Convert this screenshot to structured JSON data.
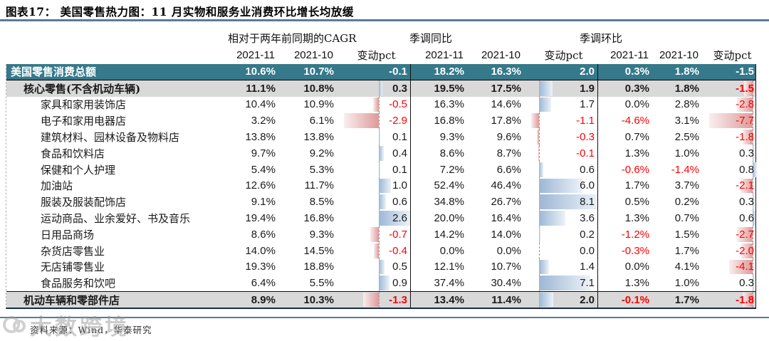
{
  "chart_data": {
    "type": "table",
    "title": "图表17：  美国零售热力图：11 月实物和服务业消费环比增长均放缓",
    "column_groups": [
      {
        "label": "相对于两年前同期的CAGR",
        "columns": [
          "2021-11",
          "2021-10",
          "变动pct"
        ]
      },
      {
        "label": "季调同比",
        "columns": [
          "2021-11",
          "2021-10",
          "变动pct"
        ]
      },
      {
        "label": "季调环比",
        "columns": [
          "2021-11",
          "2021-10",
          "变动pct"
        ]
      }
    ],
    "bar_ranges": [
      [
        -2.9,
        2.6
      ],
      [
        -1.1,
        8.1
      ],
      [
        -7.7,
        0.8
      ]
    ],
    "rows": [
      {
        "label": "美国零售消费总额",
        "level": 0,
        "style": "total",
        "values": [
          "10.6%",
          "10.7%",
          -0.1,
          "18.2%",
          "16.3%",
          2.0,
          "0.3%",
          "1.8%",
          -1.5
        ]
      },
      {
        "label": "核心零售(不含机动车辆)",
        "level": 1,
        "style": "subtotal",
        "values": [
          "11.1%",
          "10.8%",
          0.3,
          "19.5%",
          "17.5%",
          1.9,
          "0.3%",
          "1.8%",
          -1.5
        ]
      },
      {
        "label": "家具和家用装饰店",
        "level": 2,
        "style": "normal",
        "values": [
          "10.4%",
          "10.9%",
          -0.5,
          "16.3%",
          "14.6%",
          1.7,
          "0.0%",
          "2.8%",
          -2.8
        ]
      },
      {
        "label": "电子和家用电器店",
        "level": 2,
        "style": "normal",
        "values": [
          "3.2%",
          "6.1%",
          -2.9,
          "16.8%",
          "17.8%",
          -1.1,
          "-4.6%",
          "3.1%",
          -7.7
        ]
      },
      {
        "label": "建筑材料、园林设备及物料店",
        "level": 2,
        "style": "normal",
        "values": [
          "13.8%",
          "13.8%",
          0.1,
          "9.3%",
          "9.6%",
          -0.3,
          "0.7%",
          "2.5%",
          -1.8
        ]
      },
      {
        "label": "食品和饮料店",
        "level": 2,
        "style": "normal",
        "values": [
          "9.7%",
          "9.2%",
          0.4,
          "8.6%",
          "8.7%",
          -0.1,
          "1.3%",
          "1.0%",
          0.3
        ]
      },
      {
        "label": "保健和个人护理",
        "level": 2,
        "style": "normal",
        "values": [
          "5.4%",
          "5.3%",
          0.1,
          "7.2%",
          "6.6%",
          0.6,
          "-0.6%",
          "-1.4%",
          0.8
        ]
      },
      {
        "label": "加油站",
        "level": 2,
        "style": "normal",
        "values": [
          "12.6%",
          "11.7%",
          1.0,
          "52.4%",
          "46.4%",
          6.0,
          "1.7%",
          "3.7%",
          -2.1
        ]
      },
      {
        "label": "服装及服装配饰店",
        "level": 2,
        "style": "normal",
        "values": [
          "9.1%",
          "8.5%",
          0.6,
          "34.8%",
          "26.7%",
          8.1,
          "0.5%",
          "0.2%",
          0.3
        ]
      },
      {
        "label": "运动商品、业余爱好、书及音乐",
        "level": 2,
        "style": "normal",
        "values": [
          "19.4%",
          "16.8%",
          2.6,
          "20.0%",
          "16.4%",
          3.6,
          "1.3%",
          "0.7%",
          0.6
        ]
      },
      {
        "label": "日用品商场",
        "level": 2,
        "style": "normal",
        "values": [
          "8.6%",
          "9.3%",
          -0.7,
          "14.2%",
          "14.0%",
          0.2,
          "-1.2%",
          "1.5%",
          -2.7
        ]
      },
      {
        "label": "杂货店零售业",
        "level": 2,
        "style": "normal",
        "values": [
          "14.0%",
          "14.5%",
          -0.4,
          "0.0%",
          "0.0%",
          0.0,
          "-0.3%",
          "1.7%",
          -2.0
        ]
      },
      {
        "label": "无店铺零售业",
        "level": 2,
        "style": "normal",
        "values": [
          "19.3%",
          "18.8%",
          0.5,
          "12.1%",
          "10.7%",
          1.4,
          "0.0%",
          "4.1%",
          -4.1
        ]
      },
      {
        "label": "食品服务和饮吧",
        "level": 2,
        "style": "normal",
        "values": [
          "6.4%",
          "5.5%",
          0.9,
          "37.4%",
          "30.4%",
          7.1,
          "1.3%",
          "1.0%",
          0.3
        ]
      },
      {
        "label": "机动车辆和零部件店",
        "level": 1,
        "style": "subtotal",
        "values": [
          "8.9%",
          "10.3%",
          -1.3,
          "13.4%",
          "11.4%",
          2.0,
          "-0.1%",
          "1.7%",
          -1.8
        ]
      }
    ]
  },
  "footer": {
    "source": "资料来源：Wind，华泰研究",
    "watermark": "大数跨境"
  },
  "colors": {
    "teal": "#35798A",
    "gray": "#D9D9D9",
    "red": "#FF0000",
    "rule": "#5B7B96",
    "barpos": "#9DB7D4",
    "barneg": "#DE9B9B"
  }
}
